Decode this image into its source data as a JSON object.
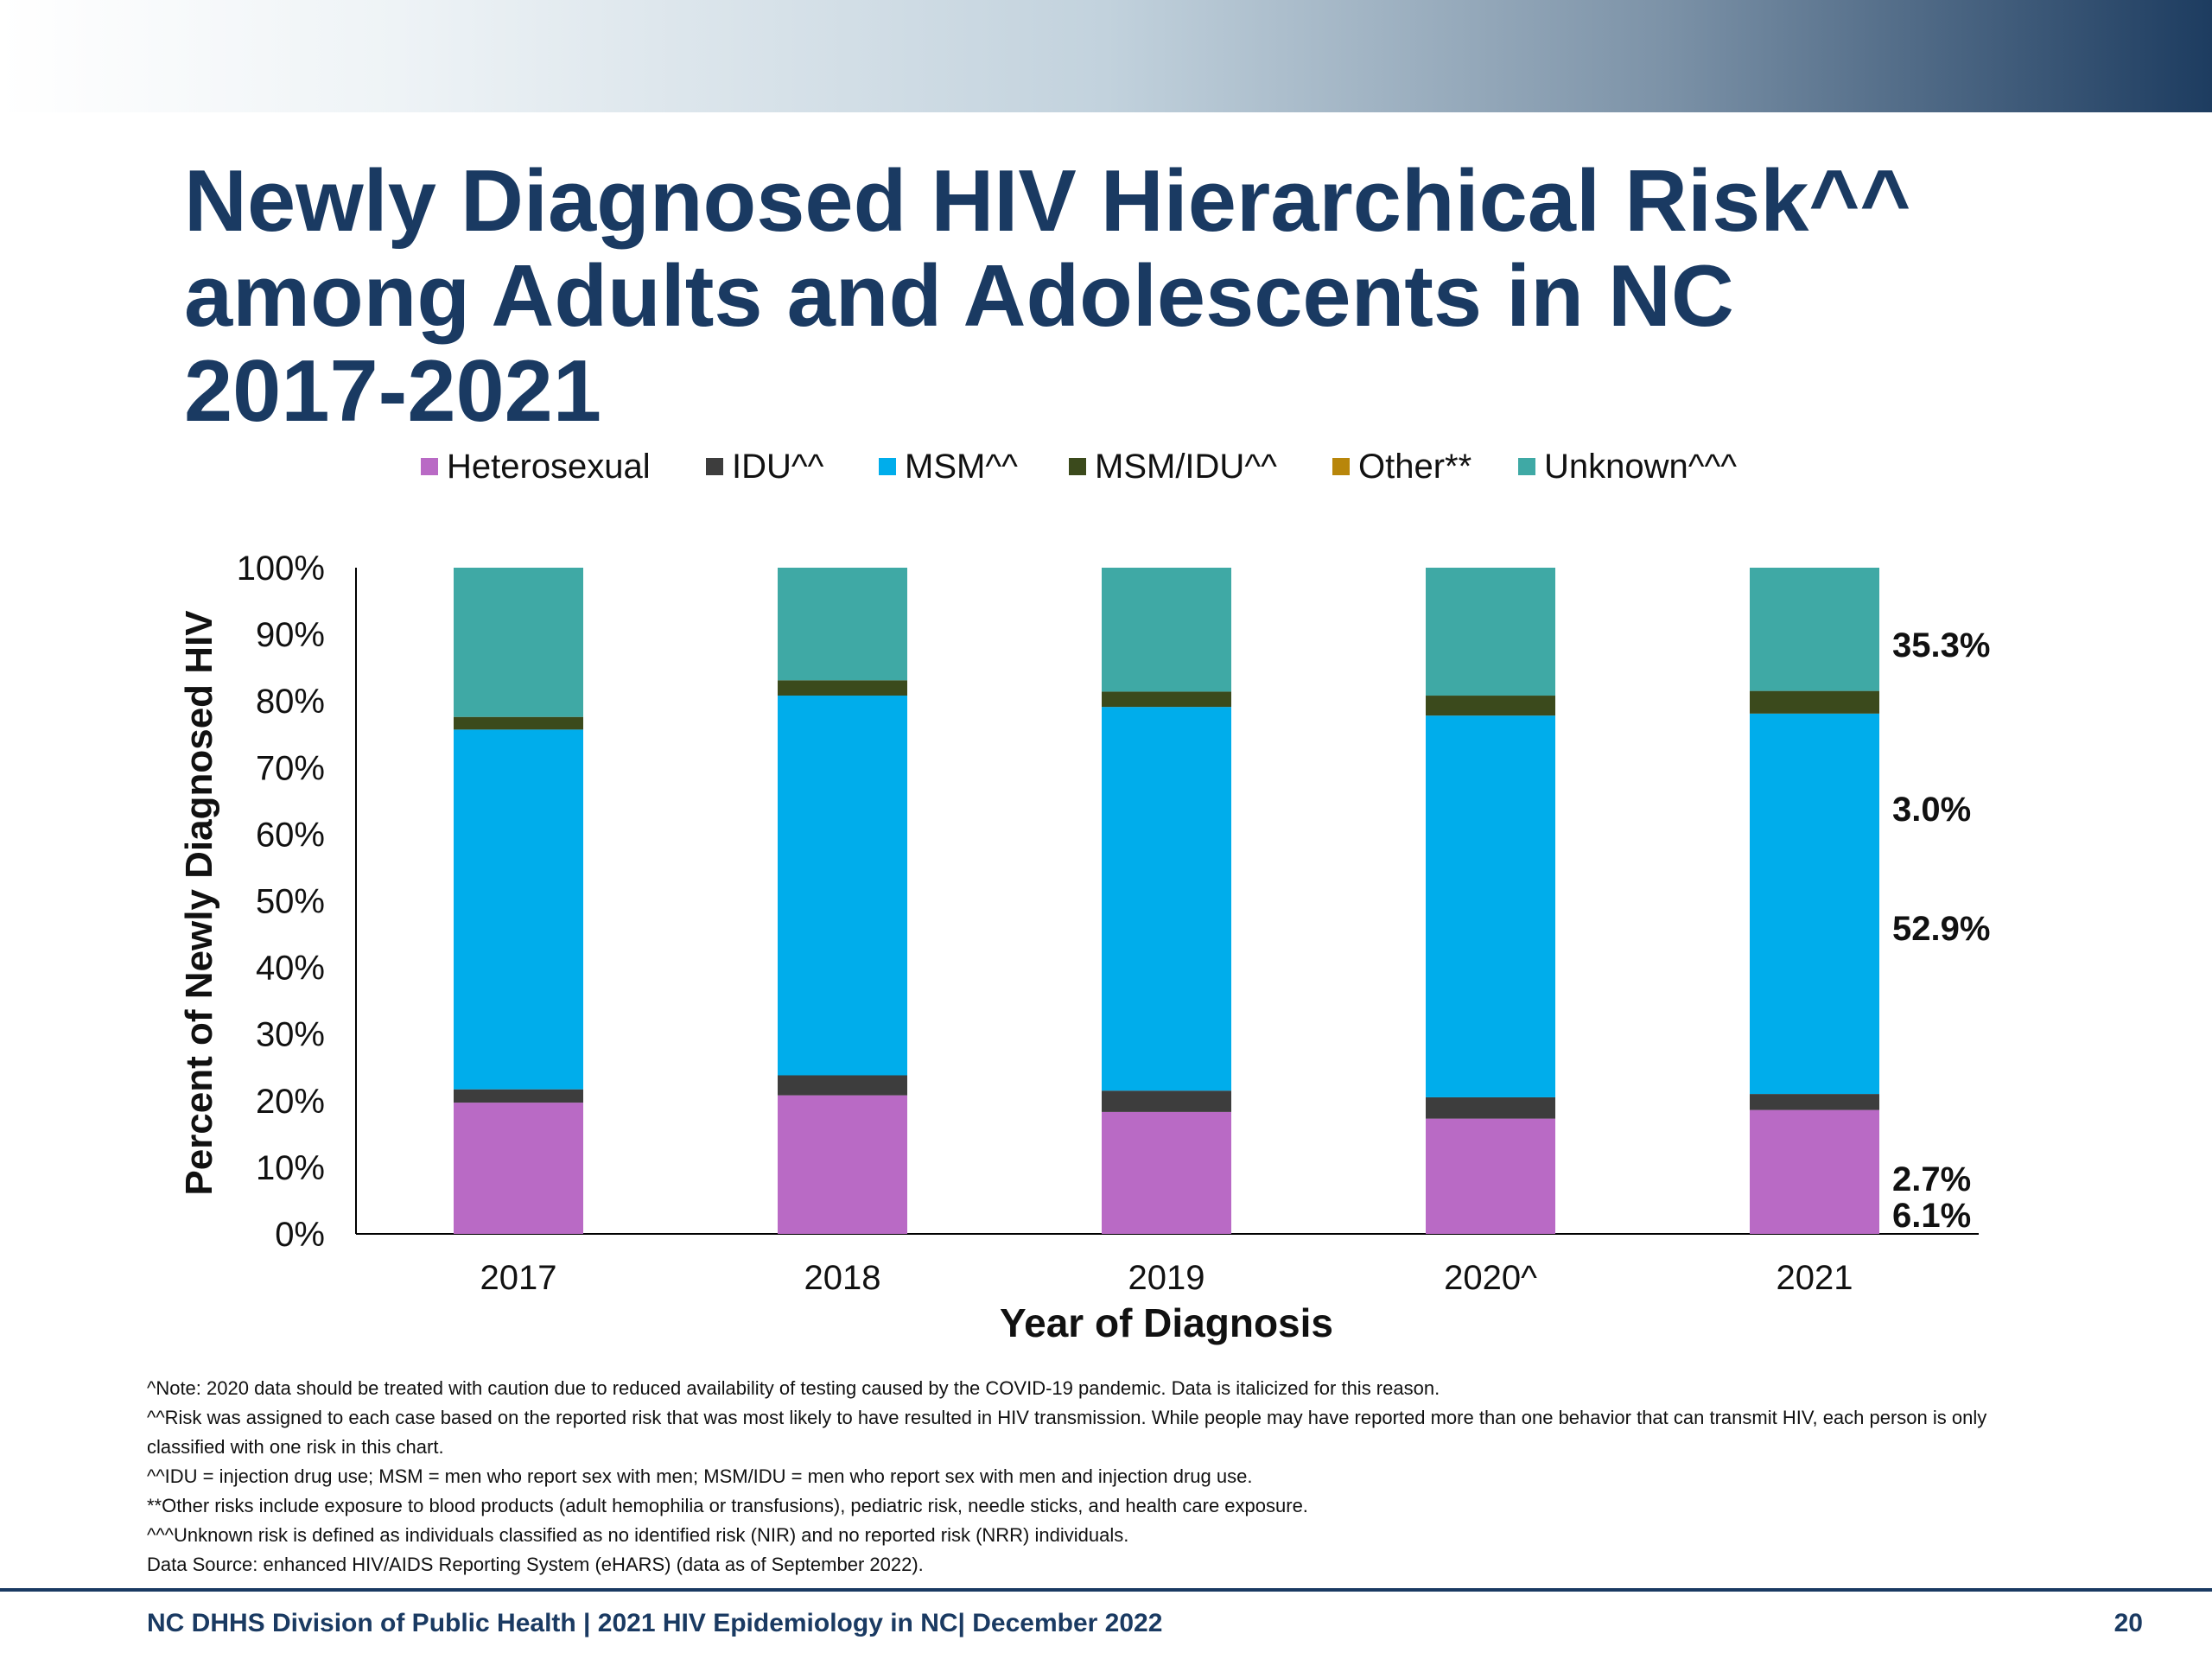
{
  "slide": {
    "title_lines": [
      "Newly Diagnosed HIV Hierarchical Risk^^",
      "among Adults and Adolescents in NC",
      "2017-2021"
    ],
    "notes": [
      "^Note: 2020 data should be treated with caution due to reduced availability of testing caused by the COVID-19 pandemic. Data is italicized for this reason.",
      "^^Risk was assigned to each case based on the reported risk that was most likely to have resulted in HIV transmission. While people may have reported more than one behavior that can transmit HIV, each person is only classified with one risk in this chart.",
      "^^IDU = injection drug use; MSM = men who report sex with men; MSM/IDU = men who report sex with men and injection drug use.",
      "**Other risks include exposure to blood products (adult hemophilia or transfusions), pediatric risk, needle sticks, and health care exposure.",
      "^^^Unknown risk is defined as individuals classified as no identified risk (NIR) and no reported risk (NRR) individuals.",
      "Data Source: enhanced HIV/AIDS Reporting System (eHARS) (data as of September 2022)."
    ],
    "footer": "NC DHHS Division of Public Health | 2021 HIV Epidemiology in NC| December 2022",
    "page_number": "20",
    "colors": {
      "banner_dark": "#1d3c60",
      "title": "#1a3a62"
    }
  },
  "chart_data": {
    "type": "bar",
    "stacked": true,
    "categories": [
      "2017",
      "2018",
      "2019",
      "2020^",
      "2021"
    ],
    "xlabel": "Year of Diagnosis",
    "ylabel": "Percent of Newly Diagnosed HIV",
    "ylim": [
      0,
      100
    ],
    "yticks": [
      "0%",
      "10%",
      "20%",
      "30%",
      "40%",
      "50%",
      "60%",
      "70%",
      "80%",
      "90%",
      "100%"
    ],
    "legend_position": "top",
    "series": [
      {
        "name": "Heterosexual",
        "color": "#b96ac5",
        "values": [
          19.7,
          20.8,
          18.3,
          17.3,
          18.6
        ]
      },
      {
        "name": "IDU^^",
        "color": "#3d3d3d",
        "values": [
          2.0,
          3.0,
          3.2,
          3.2,
          2.4
        ]
      },
      {
        "name": "MSM^^",
        "color": "#00adeb",
        "values": [
          54.0,
          57.0,
          57.6,
          57.3,
          57.1
        ]
      },
      {
        "name": "MSM/IDU^^",
        "color": "#3b4a1c",
        "values": [
          1.9,
          2.3,
          2.3,
          3.0,
          3.4
        ]
      },
      {
        "name": "Other**",
        "color": "#b8860b",
        "values": [
          0.0,
          0.0,
          0.0,
          0.0,
          0.0
        ]
      },
      {
        "name": "Unknown^^^",
        "color": "#3fa9a5",
        "values": [
          22.4,
          16.9,
          18.6,
          19.2,
          18.5
        ]
      }
    ],
    "annotations": [
      "35.3%",
      "3.0%",
      "52.9%",
      "2.7%",
      "6.1%"
    ]
  }
}
